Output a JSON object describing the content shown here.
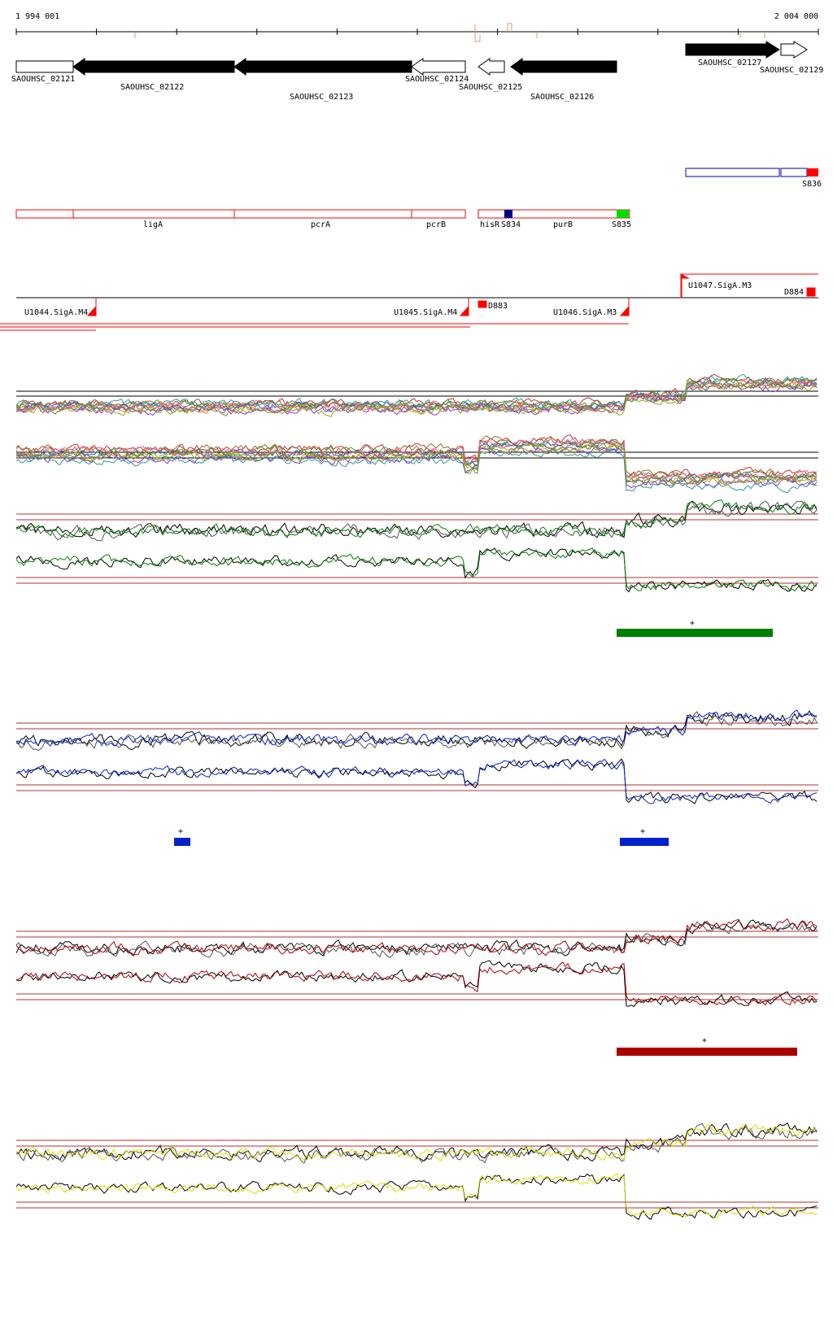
{
  "ruler": {
    "start_label": "1 994 001",
    "end_label": "2 004 000"
  },
  "genes": [
    {
      "id": "SAOUHSC_02121",
      "strand": "+",
      "filled": false
    },
    {
      "id": "SAOUHSC_02122",
      "strand": "-",
      "filled": true
    },
    {
      "id": "SAOUHSC_02123",
      "strand": "-",
      "filled": true
    },
    {
      "id": "SAOUHSC_02124",
      "strand": "-",
      "filled": false
    },
    {
      "id": "SAOUHSC_02125",
      "strand": "-",
      "filled": false
    },
    {
      "id": "SAOUHSC_02126",
      "strand": "-",
      "filled": true
    },
    {
      "id": "SAOUHSC_02127",
      "strand": "+",
      "filled": true
    },
    {
      "id": "SAOUHSC_02129",
      "strand": "+",
      "filled": false
    }
  ],
  "annotations": {
    "top_track": [
      {
        "label": "S836",
        "color": "#ff0000"
      }
    ],
    "named_genes": [
      {
        "label": "ligA"
      },
      {
        "label": "pcrA"
      },
      {
        "label": "pcrB"
      },
      {
        "label": "hisR"
      },
      {
        "label": "purB"
      }
    ],
    "small_features": [
      {
        "label": "S834",
        "color": "#000080"
      },
      {
        "label": "S835",
        "color": "#00dd00"
      }
    ]
  },
  "promoters": [
    {
      "label": "U1044.SigA.M4"
    },
    {
      "label": "U1045.SigA.M4"
    },
    {
      "label": "D883"
    },
    {
      "label": "U1046.SigA.M3"
    },
    {
      "label": "U1047.SigA.M3"
    },
    {
      "label": "D884"
    }
  ],
  "expression_panels": [
    {
      "color": "#008000",
      "marker": "+"
    },
    {
      "color": "#0022cc",
      "marker": "+"
    },
    {
      "color": "#aa0000",
      "marker": "+"
    },
    {
      "color": "#dddd00"
    }
  ],
  "colors": {
    "threshold": "#b03030",
    "annotation_outline": "#ff0000",
    "promoter": "#ff0000"
  }
}
